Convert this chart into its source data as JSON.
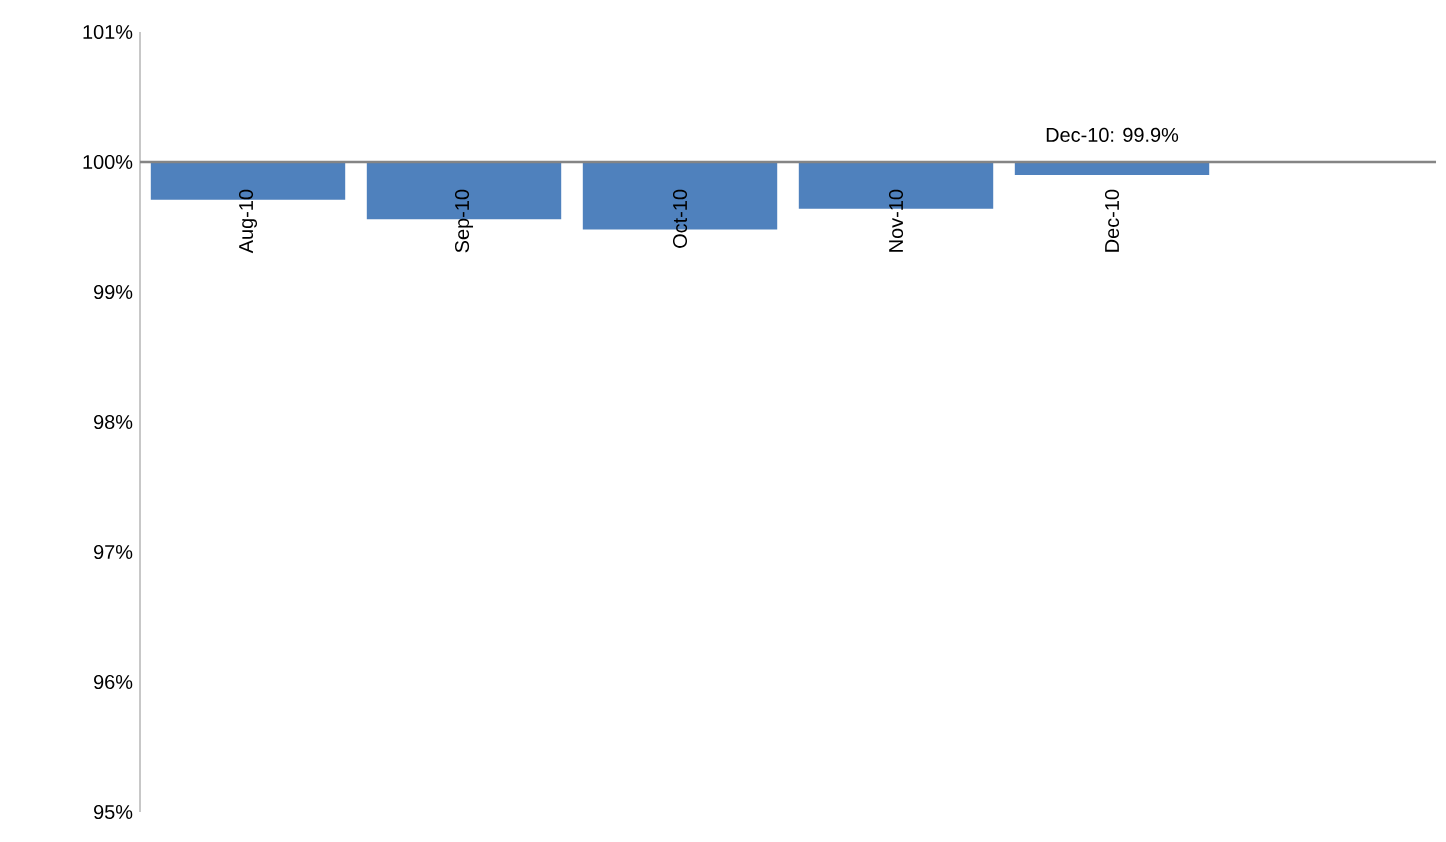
{
  "chart_data": {
    "type": "bar",
    "categories": [
      "Aug-10",
      "Sep-10",
      "Oct-10",
      "Nov-10",
      "Dec-10",
      null
    ],
    "values": [
      -0.29,
      -0.44,
      -0.52,
      -0.36,
      -0.1,
      null
    ],
    "base": [
      100,
      100,
      100,
      100,
      100,
      null
    ],
    "color": "#4f81bd",
    "ylim": [
      95,
      101
    ],
    "yticks": [
      {
        "value": 95,
        "label": "95%"
      },
      {
        "value": 96,
        "label": "96%"
      },
      {
        "value": 97,
        "label": "97%"
      },
      {
        "value": 98,
        "label": "98%"
      },
      {
        "value": 99,
        "label": "99%"
      },
      {
        "value": 100,
        "label": "100%"
      },
      {
        "value": 101,
        "label": "101%"
      }
    ],
    "annotations": [
      {
        "text": "Dec-10: 99.9%",
        "x": "Dec-10",
        "y": 99.9
      }
    ],
    "grid": false
  }
}
